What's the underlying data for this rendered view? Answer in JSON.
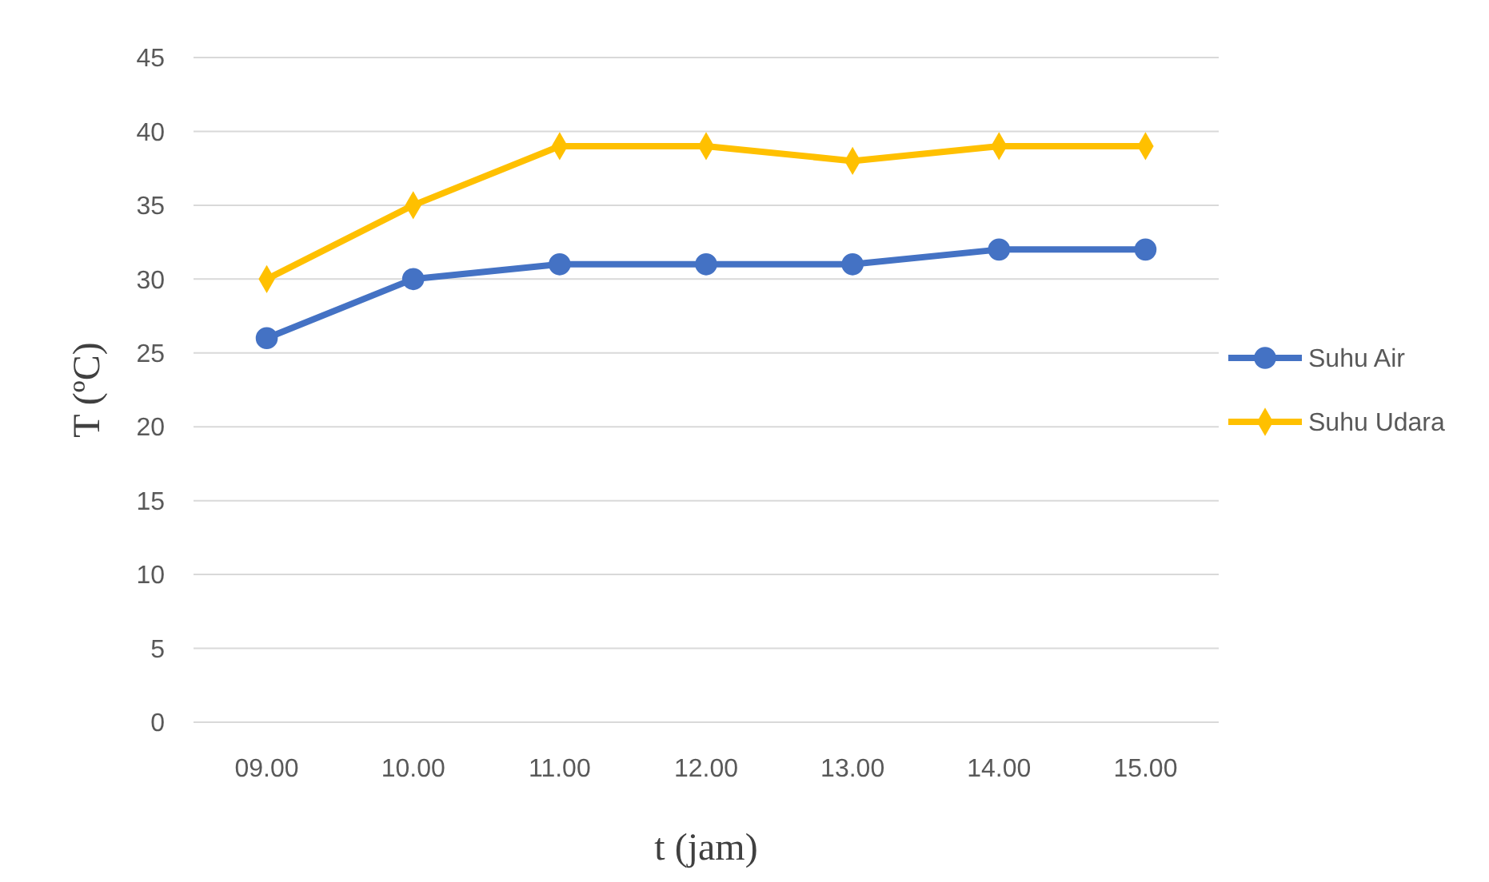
{
  "chart_data": {
    "type": "line",
    "xlabel": "t (jam)",
    "ylabel": "T  (ºC)",
    "categories": [
      "09.00",
      "10.00",
      "11.00",
      "12.00",
      "13.00",
      "14.00",
      "15.00"
    ],
    "series": [
      {
        "name": "Suhu Air",
        "color": "#4472c4",
        "values": [
          26,
          30,
          31,
          31,
          31,
          32,
          32
        ],
        "marker": "circle"
      },
      {
        "name": "Suhu Udara",
        "color": "#ffc000",
        "values": [
          30,
          35,
          39,
          39,
          38,
          39,
          39
        ],
        "marker": "diamond"
      }
    ],
    "ylim": [
      0,
      45
    ],
    "yticks": [
      0,
      5,
      10,
      15,
      20,
      25,
      30,
      35,
      40,
      45
    ],
    "grid": "y",
    "legend": "right"
  }
}
